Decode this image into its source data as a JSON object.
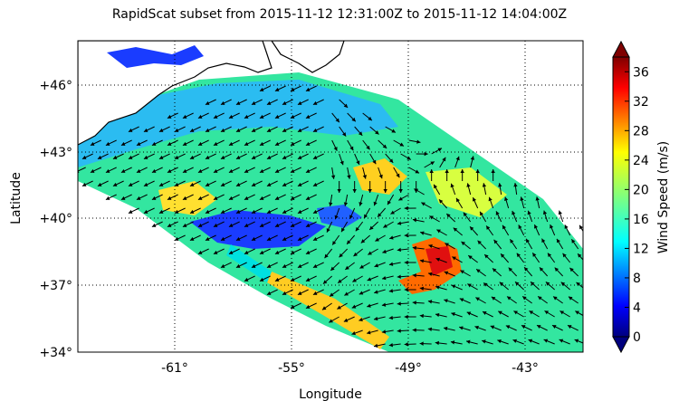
{
  "title": "RapidScat subset from 2015-11-12 12:31:00Z to 2015-11-12 14:04:00Z",
  "ylabel": "Latitude",
  "xlabel": "Longitude",
  "colorbar": {
    "label": "Wind Speed (m/s)",
    "ticks": [
      "0",
      "4",
      "8",
      "12",
      "16",
      "20",
      "24",
      "28",
      "32",
      "36"
    ],
    "range": [
      0,
      38
    ]
  },
  "map": {
    "lon_range": [
      -66,
      -40
    ],
    "lat_range": [
      34,
      48
    ],
    "lat_ticks": [
      "+34°",
      "+37°",
      "+40°",
      "+43°",
      "+46°"
    ],
    "lon_ticks": [
      "-61°",
      "-55°",
      "-49°",
      "-43°"
    ],
    "lat_tick_values": [
      34,
      37,
      40,
      43,
      46
    ],
    "lon_tick_values": [
      -61,
      -55,
      -49,
      -43
    ],
    "grid": "dotted"
  },
  "colors": {
    "land": "#ffffff",
    "water_missing": "#ffffff",
    "jet_dark_blue": "#00007f",
    "jet_red": "#7f0000"
  }
}
